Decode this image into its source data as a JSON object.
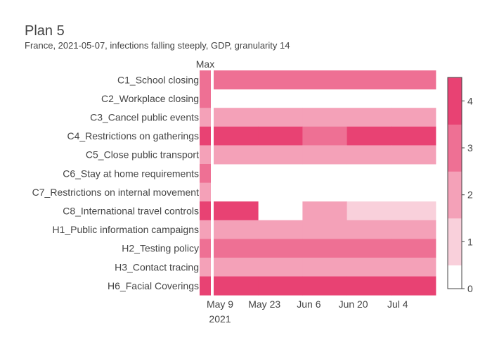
{
  "chart_data": {
    "type": "heatmap",
    "title": "Plan 5",
    "subtitle": "France, 2021-05-07, infections falling steeply, GDP, granularity 14",
    "max_column_label": "Max",
    "rows": [
      "C1_School closing",
      "C2_Workplace closing",
      "C3_Cancel public events",
      "C4_Restrictions on gatherings",
      "C5_Close public transport",
      "C6_Stay at home requirements",
      "C7_Restrictions on internal movement",
      "C8_International travel controls",
      "H1_Public information campaigns",
      "H2_Testing policy",
      "H3_Contact tracing",
      "H6_Facial Coverings"
    ],
    "max_values": [
      3,
      3,
      2,
      4,
      2,
      3,
      2,
      4,
      2,
      3,
      2,
      4
    ],
    "periods": [
      "2021-05-07",
      "2021-05-21",
      "2021-06-04",
      "2021-06-18",
      "2021-07-02"
    ],
    "values": [
      [
        3,
        3,
        3,
        3,
        3
      ],
      [
        null,
        null,
        null,
        null,
        null
      ],
      [
        2,
        2,
        2,
        2,
        2
      ],
      [
        4,
        4,
        3,
        4,
        4
      ],
      [
        2,
        2,
        2,
        2,
        2
      ],
      [
        null,
        null,
        null,
        null,
        null
      ],
      [
        null,
        null,
        null,
        null,
        null
      ],
      [
        4,
        null,
        2,
        1,
        1
      ],
      [
        2,
        2,
        2,
        2,
        2
      ],
      [
        3,
        3,
        3,
        3,
        3
      ],
      [
        2,
        2,
        2,
        2,
        2
      ],
      [
        4,
        4,
        4,
        4,
        4
      ]
    ],
    "x_ticks": [
      {
        "date": "2021-05-09",
        "label": "May 9",
        "sublabel": "2021"
      },
      {
        "date": "2021-05-23",
        "label": "May 23",
        "sublabel": ""
      },
      {
        "date": "2021-06-06",
        "label": "Jun 6",
        "sublabel": ""
      },
      {
        "date": "2021-06-20",
        "label": "Jun 20",
        "sublabel": ""
      },
      {
        "date": "2021-07-04",
        "label": "Jul 4",
        "sublabel": ""
      }
    ],
    "colorscale": [
      "#ffffff",
      "#f9d0db",
      "#f4a1b8",
      "#ee7094",
      "#e84273"
    ],
    "zmin": 0,
    "zmax": 4.5,
    "colorbar_ticks": [
      "0",
      "1",
      "2",
      "3",
      "4"
    ]
  }
}
